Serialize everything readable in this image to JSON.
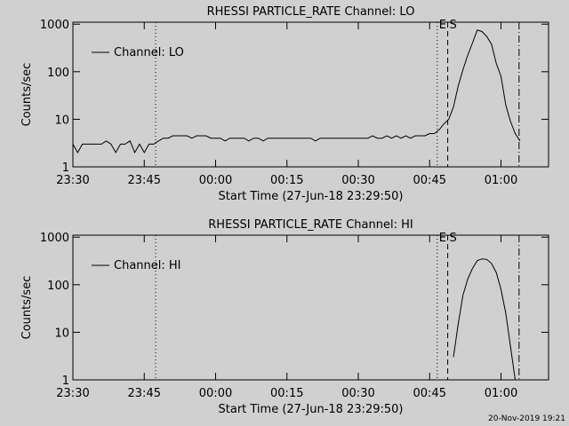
{
  "chart_data": [
    {
      "type": "line",
      "title": "RHESSI PARTICLE_RATE Channel: LO",
      "x_label": "Start Time (27-Jun-18 23:29:50)",
      "y_label": "Counts/sec",
      "log_y": true,
      "xlim": [
        0,
        100
      ],
      "xticks": [
        {
          "value": 0,
          "label": "23:30"
        },
        {
          "value": 15,
          "label": "23:45"
        },
        {
          "value": 30,
          "label": "00:00"
        },
        {
          "value": 45,
          "label": "00:15"
        },
        {
          "value": 60,
          "label": "00:30"
        },
        {
          "value": 75,
          "label": "00:45"
        },
        {
          "value": 90,
          "label": "01:00"
        }
      ],
      "ylim": [
        1,
        1100
      ],
      "yticks": [
        1,
        10,
        100,
        1000
      ],
      "markers": [
        {
          "x": 17.4,
          "style": "dotted"
        },
        {
          "x": 76.6,
          "style": "dotted"
        },
        {
          "x": 78.8,
          "style": "dashed"
        },
        {
          "x": 93.8,
          "style": "dashdot"
        }
      ],
      "annotations": [
        "E",
        "S"
      ],
      "x": [
        0,
        1,
        2,
        3,
        4,
        5,
        6,
        7,
        8,
        9,
        10,
        11,
        12,
        13,
        14,
        15,
        16,
        17,
        18,
        19,
        20,
        21,
        22,
        23,
        24,
        25,
        26,
        27,
        28,
        29,
        30,
        31,
        32,
        33,
        34,
        35,
        36,
        37,
        38,
        39,
        40,
        41,
        42,
        43,
        44,
        45,
        46,
        47,
        48,
        49,
        50,
        51,
        52,
        53,
        54,
        55,
        56,
        57,
        58,
        59,
        60,
        61,
        62,
        63,
        64,
        65,
        66,
        67,
        68,
        69,
        70,
        71,
        72,
        73,
        74,
        75,
        76,
        77,
        78,
        79,
        80,
        81,
        82,
        83,
        84,
        85,
        86,
        87,
        88,
        89,
        90,
        91,
        92,
        93,
        94
      ],
      "series": [
        {
          "name": "Channel: LO",
          "color": "#000000",
          "values": [
            3,
            2,
            3,
            3,
            3,
            3,
            3,
            3.5,
            3,
            2,
            3,
            3,
            3.5,
            2,
            3,
            2,
            3,
            3,
            3.5,
            4,
            4,
            4.5,
            4.5,
            4.5,
            4.5,
            4,
            4.5,
            4.5,
            4.5,
            4,
            4,
            4,
            3.5,
            4,
            4,
            4,
            4,
            3.5,
            4,
            4,
            3.5,
            4,
            4,
            4,
            4,
            4,
            4,
            4,
            4,
            4,
            4,
            3.5,
            4,
            4,
            4,
            4,
            4,
            4,
            4,
            4,
            4,
            4,
            4,
            4.5,
            4,
            4,
            4.5,
            4,
            4.5,
            4,
            4.5,
            4,
            4.5,
            4.5,
            4.5,
            5,
            5,
            6,
            8,
            10,
            18,
            50,
            110,
            220,
            400,
            750,
            700,
            550,
            380,
            150,
            80,
            20,
            9,
            5,
            3.5
          ]
        }
      ]
    },
    {
      "type": "line",
      "title": "RHESSI PARTICLE_RATE Channel: HI",
      "x_label": "Start Time (27-Jun-18 23:29:50)",
      "y_label": "Counts/sec",
      "log_y": true,
      "xlim": [
        0,
        100
      ],
      "xticks": [
        {
          "value": 0,
          "label": "23:30"
        },
        {
          "value": 15,
          "label": "23:45"
        },
        {
          "value": 30,
          "label": "00:00"
        },
        {
          "value": 45,
          "label": "00:15"
        },
        {
          "value": 60,
          "label": "00:30"
        },
        {
          "value": 75,
          "label": "00:45"
        },
        {
          "value": 90,
          "label": "01:00"
        }
      ],
      "ylim": [
        1,
        1100
      ],
      "yticks": [
        1,
        10,
        100,
        1000
      ],
      "markers": [
        {
          "x": 17.4,
          "style": "dotted"
        },
        {
          "x": 76.6,
          "style": "dotted"
        },
        {
          "x": 78.8,
          "style": "dashed"
        },
        {
          "x": 93.8,
          "style": "dashdot"
        }
      ],
      "annotations": [
        "E",
        "S"
      ],
      "x": [
        80,
        81,
        82,
        83,
        84,
        85,
        86,
        87,
        88,
        89,
        90,
        91,
        92,
        93
      ],
      "series": [
        {
          "name": "Channel: HI",
          "color": "#000000",
          "values": [
            3,
            15,
            60,
            130,
            220,
            320,
            350,
            340,
            280,
            180,
            80,
            25,
            5,
            1
          ]
        }
      ]
    }
  ],
  "footer": "20-Nov-2019 19:21"
}
